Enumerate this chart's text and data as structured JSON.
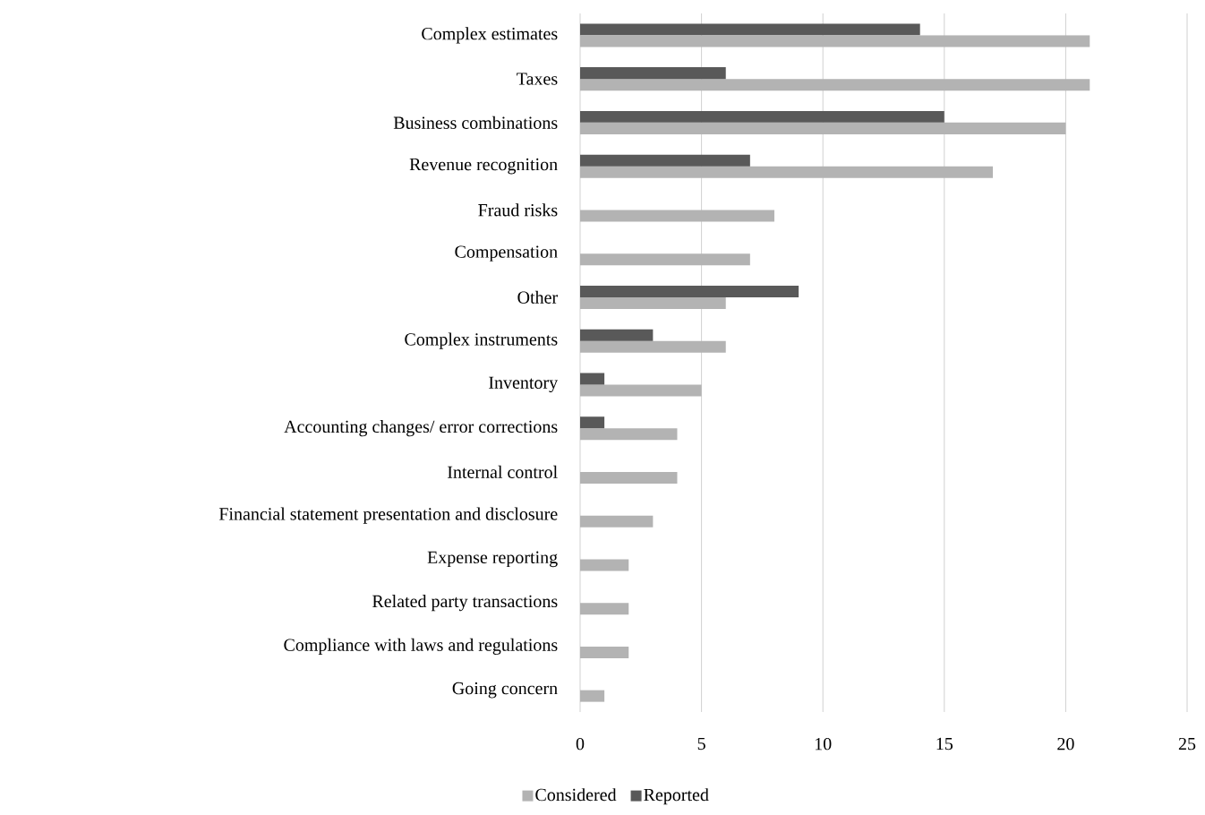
{
  "chart_data": {
    "type": "bar",
    "orientation": "horizontal",
    "categories": [
      "Complex estimates",
      "Taxes",
      "Business combinations",
      "Revenue recognition",
      "Fraud risks",
      "Compensation",
      "Other",
      "Complex instruments",
      "Inventory",
      "Accounting changes/ error corrections",
      "Internal control",
      "Financial statement presentation and disclosure",
      "Expense reporting",
      "Related party transactions",
      "Compliance with laws and regulations",
      "Going concern"
    ],
    "series": [
      {
        "name": "Considered",
        "color": "#b3b3b3",
        "values": [
          21,
          21,
          20,
          17,
          8,
          7,
          6,
          6,
          5,
          4,
          4,
          3,
          2,
          2,
          2,
          1
        ]
      },
      {
        "name": "Reported",
        "color": "#595959",
        "values": [
          14,
          6,
          15,
          7,
          null,
          null,
          9,
          3,
          1,
          1,
          null,
          null,
          null,
          null,
          null,
          null
        ]
      }
    ],
    "xlim": [
      0,
      25
    ],
    "xticks": [
      0,
      5,
      10,
      15,
      20,
      25
    ],
    "grid": "x",
    "legend": "bottom"
  }
}
